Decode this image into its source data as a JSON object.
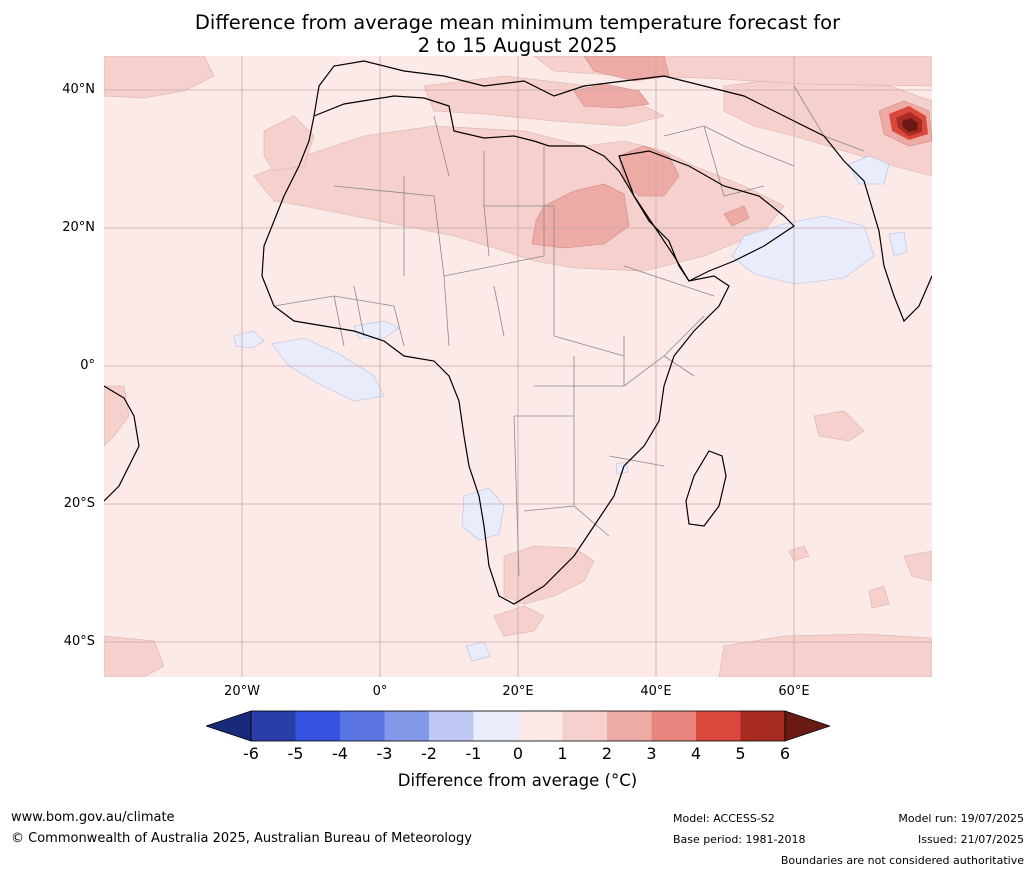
{
  "title_line1": "Difference from average mean minimum temperature forecast for",
  "title_line2": "2 to 15 August 2025",
  "map": {
    "lat_labels": [
      {
        "value": 40,
        "label": "40°N"
      },
      {
        "value": 20,
        "label": "20°N"
      },
      {
        "value": 0,
        "label": "0°"
      },
      {
        "value": -20,
        "label": "20°S"
      },
      {
        "value": -40,
        "label": "40°S"
      }
    ],
    "lon_labels": [
      {
        "value": -20,
        "label": "20°W"
      },
      {
        "value": 0,
        "label": "0°"
      },
      {
        "value": 20,
        "label": "20°E"
      },
      {
        "value": 40,
        "label": "40°E"
      },
      {
        "value": 60,
        "label": "60°E"
      }
    ],
    "extent": {
      "lon_min": -40,
      "lon_max": 80,
      "lat_min": -45,
      "lat_max": 45
    },
    "background_color": "#fbeae8",
    "anomaly_regions": [
      {
        "name": "sahara-band",
        "level": "1 to 2"
      },
      {
        "name": "central-sahara",
        "level": "2 to 3"
      },
      {
        "name": "arabian-peninsula",
        "level": "2 to 3"
      },
      {
        "name": "turkey",
        "level": "2 to 3"
      },
      {
        "name": "himalaya-hotspot",
        "level": "4 to 6"
      },
      {
        "name": "arabian-sea",
        "level": "-1 to 0"
      },
      {
        "name": "gulf-of-guinea",
        "level": "-1 to 0"
      },
      {
        "name": "namibia-coast",
        "level": "-1 to 0"
      },
      {
        "name": "southern-africa",
        "level": "1 to 2"
      }
    ]
  },
  "colorbar": {
    "ticks": [
      "-6",
      "-5",
      "-4",
      "-3",
      "-2",
      "-1",
      "0",
      "1",
      "2",
      "3",
      "4",
      "5",
      "6"
    ],
    "colors": [
      "#1a2a7a",
      "#2a3ea8",
      "#3553e0",
      "#5b74e4",
      "#8599e9",
      "#c0c9f3",
      "#e9ecfb",
      "#fbeae8",
      "#f5d0cc",
      "#eeaaa5",
      "#e7857e",
      "#d9473d",
      "#a82b22",
      "#6a1a15"
    ],
    "label": "Difference from average (°C)"
  },
  "footer": {
    "website": "www.bom.gov.au/climate",
    "copyright": "© Commonwealth of Australia 2025, Australian Bureau of Meteorology",
    "model": "Model: ACCESS-S2",
    "base_period": "Base period: 1981-2018",
    "model_run": "Model run: 19/07/2025",
    "issued": "Issued: 21/07/2025",
    "disclaimer": "Boundaries are not considered authoritative"
  }
}
